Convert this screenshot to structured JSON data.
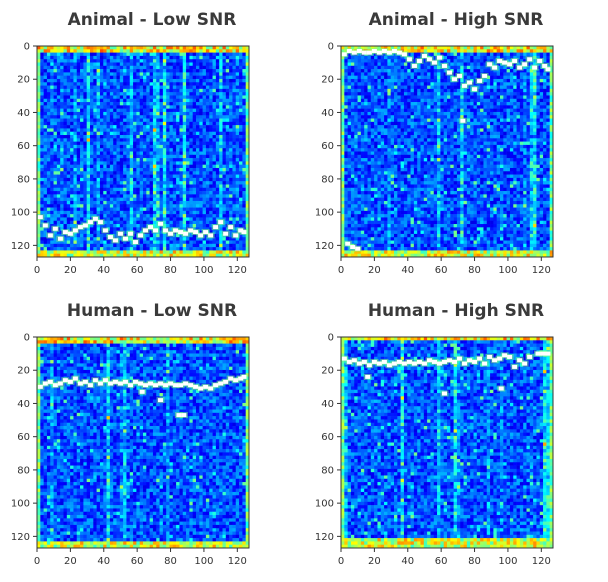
{
  "chart_data": [
    {
      "type": "heatmap",
      "title": "Animal - Low SNR",
      "xlabel": "",
      "ylabel": "",
      "xlim": [
        0,
        127
      ],
      "ylim": [
        127,
        0
      ],
      "xticks": [
        0,
        20,
        40,
        60,
        80,
        100,
        120
      ],
      "yticks": [
        0,
        20,
        40,
        60,
        80,
        100,
        120
      ],
      "top_band_rows": 3,
      "bottom_band_rows": 4,
      "marker_track": [
        {
          "x": 2,
          "y": 103
        },
        {
          "x": 5,
          "y": 108
        },
        {
          "x": 8,
          "y": 114
        },
        {
          "x": 11,
          "y": 110
        },
        {
          "x": 14,
          "y": 116
        },
        {
          "x": 17,
          "y": 112
        },
        {
          "x": 20,
          "y": 113
        },
        {
          "x": 23,
          "y": 111
        },
        {
          "x": 26,
          "y": 109
        },
        {
          "x": 29,
          "y": 108
        },
        {
          "x": 32,
          "y": 106
        },
        {
          "x": 35,
          "y": 104
        },
        {
          "x": 38,
          "y": 106
        },
        {
          "x": 41,
          "y": 111
        },
        {
          "x": 44,
          "y": 115
        },
        {
          "x": 47,
          "y": 117
        },
        {
          "x": 50,
          "y": 113
        },
        {
          "x": 53,
          "y": 116
        },
        {
          "x": 56,
          "y": 113
        },
        {
          "x": 59,
          "y": 118
        },
        {
          "x": 62,
          "y": 114
        },
        {
          "x": 65,
          "y": 111
        },
        {
          "x": 68,
          "y": 109
        },
        {
          "x": 71,
          "y": 111
        },
        {
          "x": 74,
          "y": 107
        },
        {
          "x": 77,
          "y": 111
        },
        {
          "x": 80,
          "y": 113
        },
        {
          "x": 83,
          "y": 111
        },
        {
          "x": 86,
          "y": 112
        },
        {
          "x": 89,
          "y": 113
        },
        {
          "x": 92,
          "y": 111
        },
        {
          "x": 95,
          "y": 112
        },
        {
          "x": 98,
          "y": 114
        },
        {
          "x": 101,
          "y": 112
        },
        {
          "x": 104,
          "y": 114
        },
        {
          "x": 107,
          "y": 109
        },
        {
          "x": 110,
          "y": 106
        },
        {
          "x": 113,
          "y": 113
        },
        {
          "x": 116,
          "y": 109
        },
        {
          "x": 119,
          "y": 114
        },
        {
          "x": 122,
          "y": 111
        },
        {
          "x": 124,
          "y": 112
        }
      ]
    },
    {
      "type": "heatmap",
      "title": "Animal - High SNR",
      "xlabel": "",
      "ylabel": "",
      "xlim": [
        0,
        127
      ],
      "ylim": [
        127,
        0
      ],
      "xticks": [
        0,
        20,
        40,
        60,
        80,
        100,
        120
      ],
      "yticks": [
        0,
        20,
        40,
        60,
        80,
        100,
        120
      ],
      "top_band_rows": 3,
      "bottom_band_rows": 3,
      "marker_track": [
        {
          "x": 2,
          "y": 5
        },
        {
          "x": 5,
          "y": 3
        },
        {
          "x": 8,
          "y": 4
        },
        {
          "x": 11,
          "y": 3
        },
        {
          "x": 14,
          "y": 4
        },
        {
          "x": 17,
          "y": 4
        },
        {
          "x": 20,
          "y": 3
        },
        {
          "x": 23,
          "y": 4
        },
        {
          "x": 26,
          "y": 3
        },
        {
          "x": 29,
          "y": 4
        },
        {
          "x": 32,
          "y": 3
        },
        {
          "x": 35,
          "y": 4
        },
        {
          "x": 38,
          "y": 5
        },
        {
          "x": 41,
          "y": 8
        },
        {
          "x": 44,
          "y": 12
        },
        {
          "x": 47,
          "y": 9
        },
        {
          "x": 50,
          "y": 6
        },
        {
          "x": 53,
          "y": 8
        },
        {
          "x": 56,
          "y": 10
        },
        {
          "x": 59,
          "y": 7
        },
        {
          "x": 62,
          "y": 12
        },
        {
          "x": 65,
          "y": 16
        },
        {
          "x": 68,
          "y": 20
        },
        {
          "x": 71,
          "y": 18
        },
        {
          "x": 74,
          "y": 24
        },
        {
          "x": 77,
          "y": 22
        },
        {
          "x": 80,
          "y": 26
        },
        {
          "x": 83,
          "y": 21
        },
        {
          "x": 86,
          "y": 18
        },
        {
          "x": 89,
          "y": 11
        },
        {
          "x": 92,
          "y": 13
        },
        {
          "x": 95,
          "y": 9
        },
        {
          "x": 98,
          "y": 10
        },
        {
          "x": 101,
          "y": 11
        },
        {
          "x": 104,
          "y": 9
        },
        {
          "x": 107,
          "y": 13
        },
        {
          "x": 110,
          "y": 11
        },
        {
          "x": 113,
          "y": 8
        },
        {
          "x": 116,
          "y": 13
        },
        {
          "x": 119,
          "y": 9
        },
        {
          "x": 122,
          "y": 12
        },
        {
          "x": 124,
          "y": 14
        },
        {
          "x": 4,
          "y": 119
        },
        {
          "x": 7,
          "y": 121
        },
        {
          "x": 10,
          "y": 122
        },
        {
          "x": 73,
          "y": 45
        }
      ]
    },
    {
      "type": "heatmap",
      "title": "Human - Low SNR",
      "xlabel": "",
      "ylabel": "",
      "xlim": [
        0,
        127
      ],
      "ylim": [
        127,
        0
      ],
      "xticks": [
        0,
        20,
        40,
        60,
        80,
        100,
        120
      ],
      "yticks": [
        0,
        20,
        40,
        60,
        80,
        100,
        120
      ],
      "top_band_rows": 3,
      "bottom_band_rows": 3,
      "marker_track": [
        {
          "x": 2,
          "y": 30
        },
        {
          "x": 5,
          "y": 28
        },
        {
          "x": 8,
          "y": 27
        },
        {
          "x": 11,
          "y": 29
        },
        {
          "x": 14,
          "y": 28
        },
        {
          "x": 17,
          "y": 26
        },
        {
          "x": 20,
          "y": 27
        },
        {
          "x": 23,
          "y": 25
        },
        {
          "x": 26,
          "y": 28
        },
        {
          "x": 29,
          "y": 27
        },
        {
          "x": 32,
          "y": 29
        },
        {
          "x": 35,
          "y": 26
        },
        {
          "x": 38,
          "y": 28
        },
        {
          "x": 41,
          "y": 26
        },
        {
          "x": 44,
          "y": 28
        },
        {
          "x": 47,
          "y": 27
        },
        {
          "x": 50,
          "y": 28
        },
        {
          "x": 53,
          "y": 27
        },
        {
          "x": 56,
          "y": 29
        },
        {
          "x": 59,
          "y": 27
        },
        {
          "x": 62,
          "y": 28
        },
        {
          "x": 65,
          "y": 29
        },
        {
          "x": 68,
          "y": 28
        },
        {
          "x": 71,
          "y": 29
        },
        {
          "x": 74,
          "y": 28
        },
        {
          "x": 77,
          "y": 29
        },
        {
          "x": 80,
          "y": 28
        },
        {
          "x": 83,
          "y": 29
        },
        {
          "x": 86,
          "y": 29
        },
        {
          "x": 89,
          "y": 28
        },
        {
          "x": 92,
          "y": 29
        },
        {
          "x": 95,
          "y": 30
        },
        {
          "x": 98,
          "y": 31
        },
        {
          "x": 101,
          "y": 30
        },
        {
          "x": 104,
          "y": 31
        },
        {
          "x": 107,
          "y": 29
        },
        {
          "x": 110,
          "y": 28
        },
        {
          "x": 113,
          "y": 27
        },
        {
          "x": 116,
          "y": 25
        },
        {
          "x": 119,
          "y": 26
        },
        {
          "x": 122,
          "y": 25
        },
        {
          "x": 124,
          "y": 24
        },
        {
          "x": 74,
          "y": 38
        },
        {
          "x": 85,
          "y": 47
        },
        {
          "x": 88,
          "y": 47
        },
        {
          "x": 63,
          "y": 33
        }
      ]
    },
    {
      "type": "heatmap",
      "title": "Human - High SNR",
      "xlabel": "",
      "ylabel": "",
      "xlim": [
        0,
        127
      ],
      "ylim": [
        127,
        0
      ],
      "xticks": [
        0,
        20,
        40,
        60,
        80,
        100,
        120
      ],
      "yticks": [
        0,
        20,
        40,
        60,
        80,
        100,
        120
      ],
      "top_band_rows": 2,
      "bottom_band_rows": 6,
      "marker_track": [
        {
          "x": 2,
          "y": 13
        },
        {
          "x": 5,
          "y": 15
        },
        {
          "x": 8,
          "y": 14
        },
        {
          "x": 11,
          "y": 16
        },
        {
          "x": 14,
          "y": 15
        },
        {
          "x": 17,
          "y": 17
        },
        {
          "x": 20,
          "y": 15
        },
        {
          "x": 23,
          "y": 16
        },
        {
          "x": 26,
          "y": 15
        },
        {
          "x": 29,
          "y": 17
        },
        {
          "x": 32,
          "y": 16
        },
        {
          "x": 35,
          "y": 15
        },
        {
          "x": 38,
          "y": 16
        },
        {
          "x": 41,
          "y": 15
        },
        {
          "x": 44,
          "y": 16
        },
        {
          "x": 47,
          "y": 15
        },
        {
          "x": 50,
          "y": 16
        },
        {
          "x": 53,
          "y": 14
        },
        {
          "x": 56,
          "y": 15
        },
        {
          "x": 59,
          "y": 16
        },
        {
          "x": 62,
          "y": 15
        },
        {
          "x": 65,
          "y": 14
        },
        {
          "x": 68,
          "y": 15
        },
        {
          "x": 71,
          "y": 13
        },
        {
          "x": 74,
          "y": 16
        },
        {
          "x": 77,
          "y": 14
        },
        {
          "x": 80,
          "y": 15
        },
        {
          "x": 83,
          "y": 13
        },
        {
          "x": 86,
          "y": 16
        },
        {
          "x": 89,
          "y": 12
        },
        {
          "x": 92,
          "y": 14
        },
        {
          "x": 95,
          "y": 13
        },
        {
          "x": 98,
          "y": 11
        },
        {
          "x": 101,
          "y": 12
        },
        {
          "x": 104,
          "y": 18
        },
        {
          "x": 107,
          "y": 14
        },
        {
          "x": 110,
          "y": 16
        },
        {
          "x": 113,
          "y": 12
        },
        {
          "x": 118,
          "y": 10
        },
        {
          "x": 121,
          "y": 10
        },
        {
          "x": 124,
          "y": 10
        },
        {
          "x": 16,
          "y": 24
        },
        {
          "x": 62,
          "y": 34
        },
        {
          "x": 96,
          "y": 31
        }
      ]
    }
  ]
}
